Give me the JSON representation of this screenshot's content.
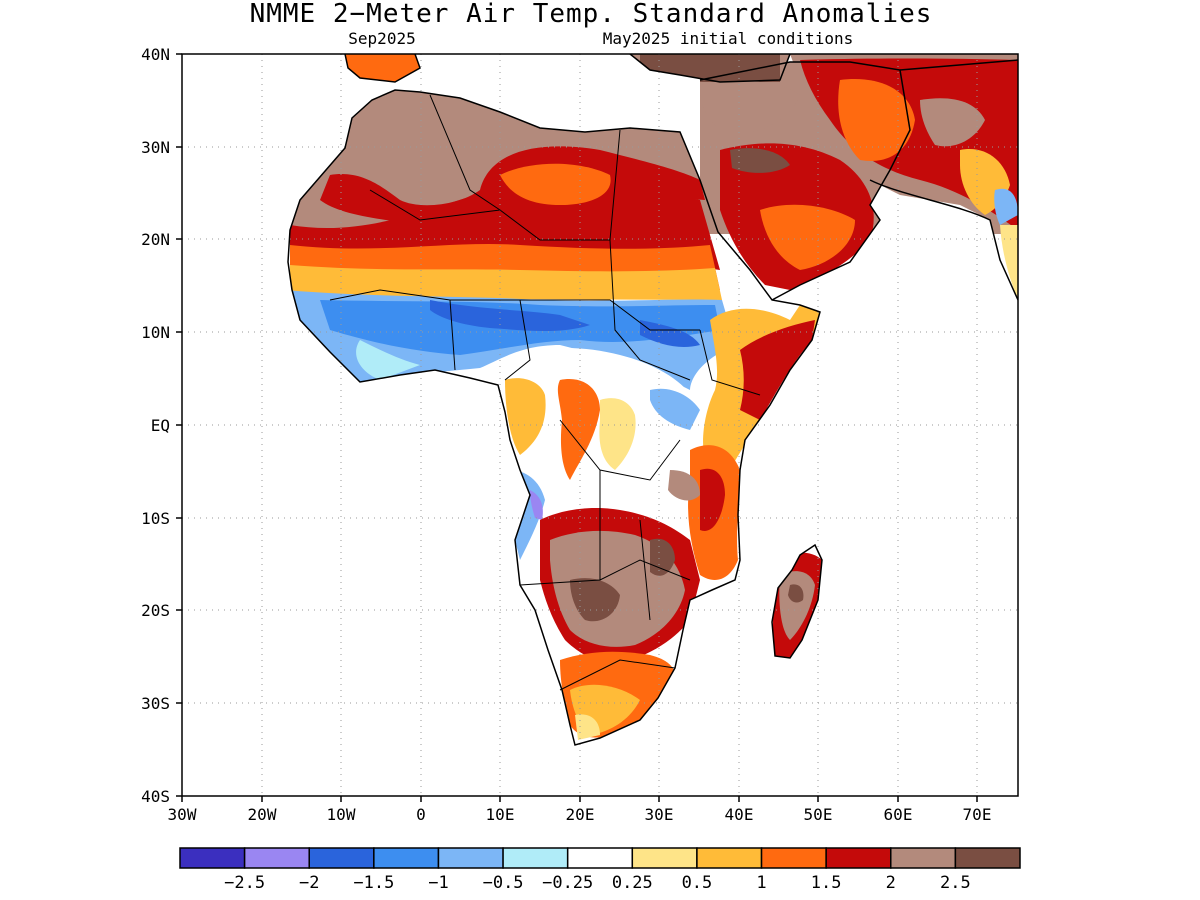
{
  "header": {
    "title": "NMME 2−Meter Air Temp. Standard Anomalies",
    "target_month": "Sep2025",
    "initial_conditions": "May2025 initial conditions"
  },
  "map": {
    "region": "Africa",
    "lon_range": [
      -30,
      75
    ],
    "lat_range": [
      -40,
      40
    ],
    "lat_ticks": [
      "40N",
      "30N",
      "20N",
      "10N",
      "EQ",
      "10S",
      "20S",
      "30S",
      "40S"
    ],
    "lon_ticks": [
      "30W",
      "20W",
      "10W",
      "0",
      "10E",
      "20E",
      "30E",
      "40E",
      "50E",
      "60E",
      "70E"
    ],
    "grid": "dotted"
  },
  "colorbar": {
    "labels": [
      "−2.5",
      "−2",
      "−1.5",
      "−1",
      "−0.5",
      "−0.25",
      "0.25",
      "0.5",
      "1",
      "1.5",
      "2",
      "2.5"
    ],
    "colors": [
      "#3b2fbf",
      "#9a86f2",
      "#2a64dc",
      "#3d8ef0",
      "#7cb6f6",
      "#b0ecf8",
      "#ffffff",
      "#fee488",
      "#ffbb38",
      "#ff6a10",
      "#c40a0a",
      "#b38a7c",
      "#7a4e42"
    ]
  },
  "anomaly_regions": [
    {
      "label": "Sahara/northern Africa",
      "category": "1.5 to 2"
    },
    {
      "label": "Sahel band",
      "category": "-1.5 to -1"
    },
    {
      "label": "Arabian Peninsula",
      "category": "1.5 to 2"
    },
    {
      "label": "Southern Africa interior",
      "category": "> 2.5"
    },
    {
      "label": "Madagascar",
      "category": "2 to 2.5"
    }
  ]
}
